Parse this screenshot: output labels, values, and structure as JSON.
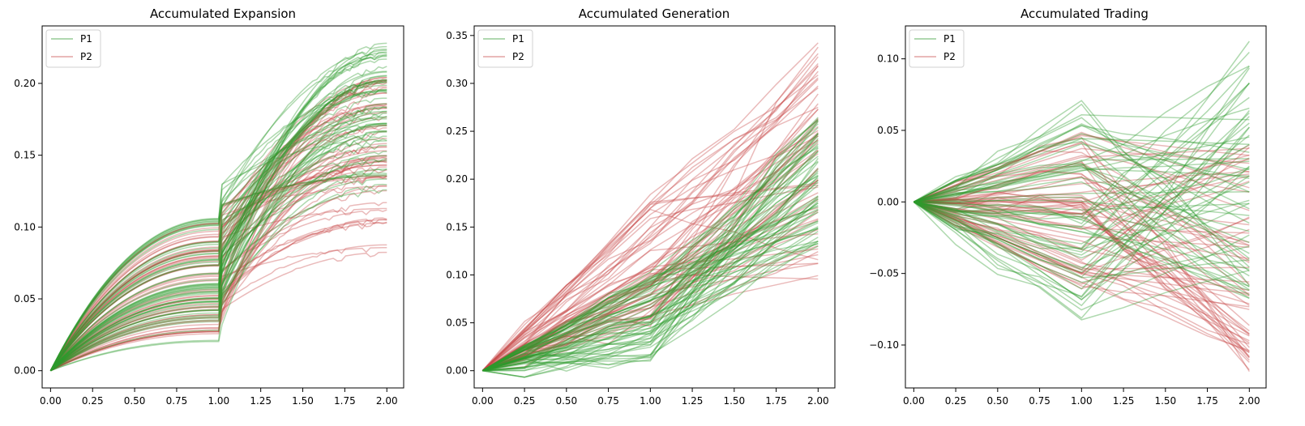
{
  "figure": {
    "colors": {
      "P1": "#2e9a2e",
      "P2": "#c84a4a",
      "frame": "#000000",
      "background": "#ffffff"
    }
  },
  "chart_data": [
    {
      "type": "line",
      "title": "Accumulated Expansion",
      "xlabel": "",
      "ylabel": "",
      "xlim": [
        -0.05,
        2.1
      ],
      "ylim": [
        -0.012,
        0.24
      ],
      "xticks": [
        0.0,
        0.25,
        0.5,
        0.75,
        1.0,
        1.25,
        1.5,
        1.75,
        2.0
      ],
      "xtick_labels": [
        "0.00",
        "0.25",
        "0.50",
        "0.75",
        "1.00",
        "1.25",
        "1.50",
        "1.75",
        "2.00"
      ],
      "yticks": [
        0.0,
        0.05,
        0.1,
        0.15,
        0.2
      ],
      "ytick_labels": [
        "0.00",
        "0.05",
        "0.10",
        "0.15",
        "0.20"
      ],
      "grid": false,
      "legend": {
        "position": "upper-left",
        "entries": [
          "P1",
          "P2"
        ]
      },
      "series_summary": [
        {
          "name": "P1",
          "color": "#2e9a2e",
          "count": 60,
          "shape": "concave-rise-jump",
          "value_at_1": [
            0.02,
            0.108
          ],
          "jump_at_1": [
            0.008,
            0.025
          ],
          "value_at_2": [
            0.12,
            0.228
          ]
        },
        {
          "name": "P2",
          "color": "#c84a4a",
          "count": 60,
          "shape": "concave-rise-jump",
          "value_at_1": [
            0.025,
            0.105
          ],
          "jump_at_1": [
            0.004,
            0.022
          ],
          "value_at_2": [
            0.075,
            0.205
          ]
        }
      ]
    },
    {
      "type": "line",
      "title": "Accumulated Generation",
      "xlabel": "",
      "ylabel": "",
      "xlim": [
        -0.05,
        2.1
      ],
      "ylim": [
        -0.018,
        0.36
      ],
      "xticks": [
        0.0,
        0.25,
        0.5,
        0.75,
        1.0,
        1.25,
        1.5,
        1.75,
        2.0
      ],
      "xtick_labels": [
        "0.00",
        "0.25",
        "0.50",
        "0.75",
        "1.00",
        "1.25",
        "1.50",
        "1.75",
        "2.00"
      ],
      "yticks": [
        0.0,
        0.05,
        0.1,
        0.15,
        0.2,
        0.25,
        0.3,
        0.35
      ],
      "ytick_labels": [
        "0.00",
        "0.05",
        "0.10",
        "0.15",
        "0.20",
        "0.25",
        "0.30",
        "0.35"
      ],
      "grid": false,
      "legend": {
        "position": "upper-left",
        "entries": [
          "P1",
          "P2"
        ]
      },
      "series_summary": [
        {
          "name": "P1",
          "color": "#2e9a2e",
          "count": 60,
          "shape": "piecewise-linear",
          "value_at_1": [
            0.015,
            0.1
          ],
          "value_at_2": [
            0.13,
            0.265
          ]
        },
        {
          "name": "P2",
          "color": "#c84a4a",
          "count": 60,
          "shape": "piecewise-linear",
          "value_at_1": [
            0.05,
            0.18
          ],
          "value_at_2": [
            0.093,
            0.345
          ]
        }
      ]
    },
    {
      "type": "line",
      "title": "Accumulated Trading",
      "xlabel": "",
      "ylabel": "",
      "xlim": [
        -0.05,
        2.1
      ],
      "ylim": [
        -0.13,
        0.123
      ],
      "xticks": [
        0.0,
        0.25,
        0.5,
        0.75,
        1.0,
        1.25,
        1.5,
        1.75,
        2.0
      ],
      "xtick_labels": [
        "0.00",
        "0.25",
        "0.50",
        "0.75",
        "1.00",
        "1.25",
        "1.50",
        "1.75",
        "2.00"
      ],
      "yticks": [
        -0.1,
        -0.05,
        0.0,
        0.05,
        0.1
      ],
      "ytick_labels": [
        "−0.10",
        "−0.05",
        "0.00",
        "0.05",
        "0.10"
      ],
      "grid": false,
      "legend": {
        "position": "upper-left",
        "entries": [
          "P1",
          "P2"
        ]
      },
      "series_summary": [
        {
          "name": "P1",
          "color": "#2e9a2e",
          "count": 60,
          "shape": "piecewise-linear",
          "value_at_1": [
            -0.087,
            0.068
          ],
          "value_at_2": [
            -0.07,
            0.113
          ]
        },
        {
          "name": "P2",
          "color": "#c84a4a",
          "count": 60,
          "shape": "piecewise-linear",
          "value_at_1": [
            -0.06,
            0.05
          ],
          "value_at_2": [
            -0.12,
            0.04
          ]
        }
      ]
    }
  ]
}
